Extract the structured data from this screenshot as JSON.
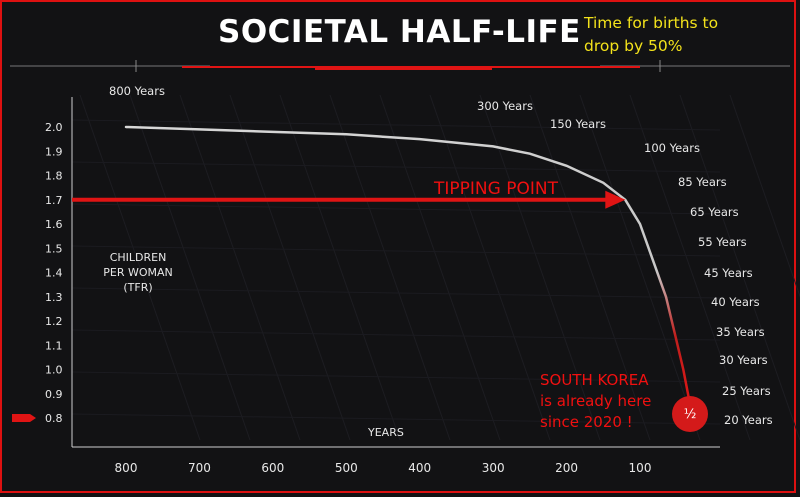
{
  "header": {
    "title": "SOCIETAL HALF-LIFE",
    "note_line1": "Time for births to",
    "note_line2": "drop by 50%"
  },
  "annotations": {
    "tipping_point": "TIPPING POINT",
    "korea_line1": "SOUTH KOREA",
    "korea_line2": "is already here",
    "korea_line3": "since 2020 !",
    "half_marker": "½"
  },
  "colors": {
    "accent": "#e01414",
    "note": "#f3e21b",
    "curve": "#cfcfcf",
    "background": "#121214"
  },
  "chart_data": {
    "type": "line",
    "title": "SOCIETAL HALF-LIFE",
    "xlabel": "YEARS",
    "ylabel": [
      "CHILDREN",
      "PER WOMAN",
      "(TFR)"
    ],
    "y_ticks": [
      "2.0",
      "1.9",
      "1.8",
      "1.7",
      "1.6",
      "1.5",
      "1.4",
      "1.3",
      "1.2",
      "1.1",
      "1.0",
      "0.9",
      "0.8"
    ],
    "x_ticks": [
      "800",
      "700",
      "600",
      "500",
      "400",
      "300",
      "200",
      "100"
    ],
    "ylim": [
      0.8,
      2.0
    ],
    "xlim": [
      800,
      0
    ],
    "highlighted_y": "0.8",
    "series": [
      {
        "points": [
          [
            800,
            2.0
          ],
          [
            700,
            1.99
          ],
          [
            600,
            1.98
          ],
          [
            500,
            1.97
          ],
          [
            400,
            1.95
          ],
          [
            300,
            1.92
          ],
          [
            250,
            1.89
          ],
          [
            200,
            1.84
          ],
          [
            150,
            1.77
          ],
          [
            120,
            1.7
          ],
          [
            100,
            1.6
          ],
          [
            85,
            1.45
          ],
          [
            70,
            1.3
          ],
          [
            60,
            1.15
          ],
          [
            50,
            1.0
          ],
          [
            42,
            0.85
          ],
          [
            40,
            0.82
          ]
        ]
      }
    ],
    "half_life_labels": [
      {
        "label": "800 Years",
        "tfr": 2.03
      },
      {
        "label": "300 Years",
        "tfr": 1.92
      },
      {
        "label": "150 Years",
        "tfr": 2.0
      },
      {
        "label": "100 Years",
        "tfr": 1.9
      },
      {
        "label": "85 Years",
        "tfr": 1.78
      },
      {
        "label": "65 Years",
        "tfr": 1.65
      },
      {
        "label": "55 Years",
        "tfr": 1.52
      },
      {
        "label": "45 Years",
        "tfr": 1.39
      },
      {
        "label": "40 Years",
        "tfr": 1.27
      },
      {
        "label": "35 Years",
        "tfr": 1.14
      },
      {
        "label": "30 Years",
        "tfr": 1.02
      },
      {
        "label": "25 Years",
        "tfr": 0.9
      },
      {
        "label": "20 Years",
        "tfr": 0.78
      }
    ],
    "tipping_point": {
      "x": 120,
      "y": 1.7
    }
  }
}
